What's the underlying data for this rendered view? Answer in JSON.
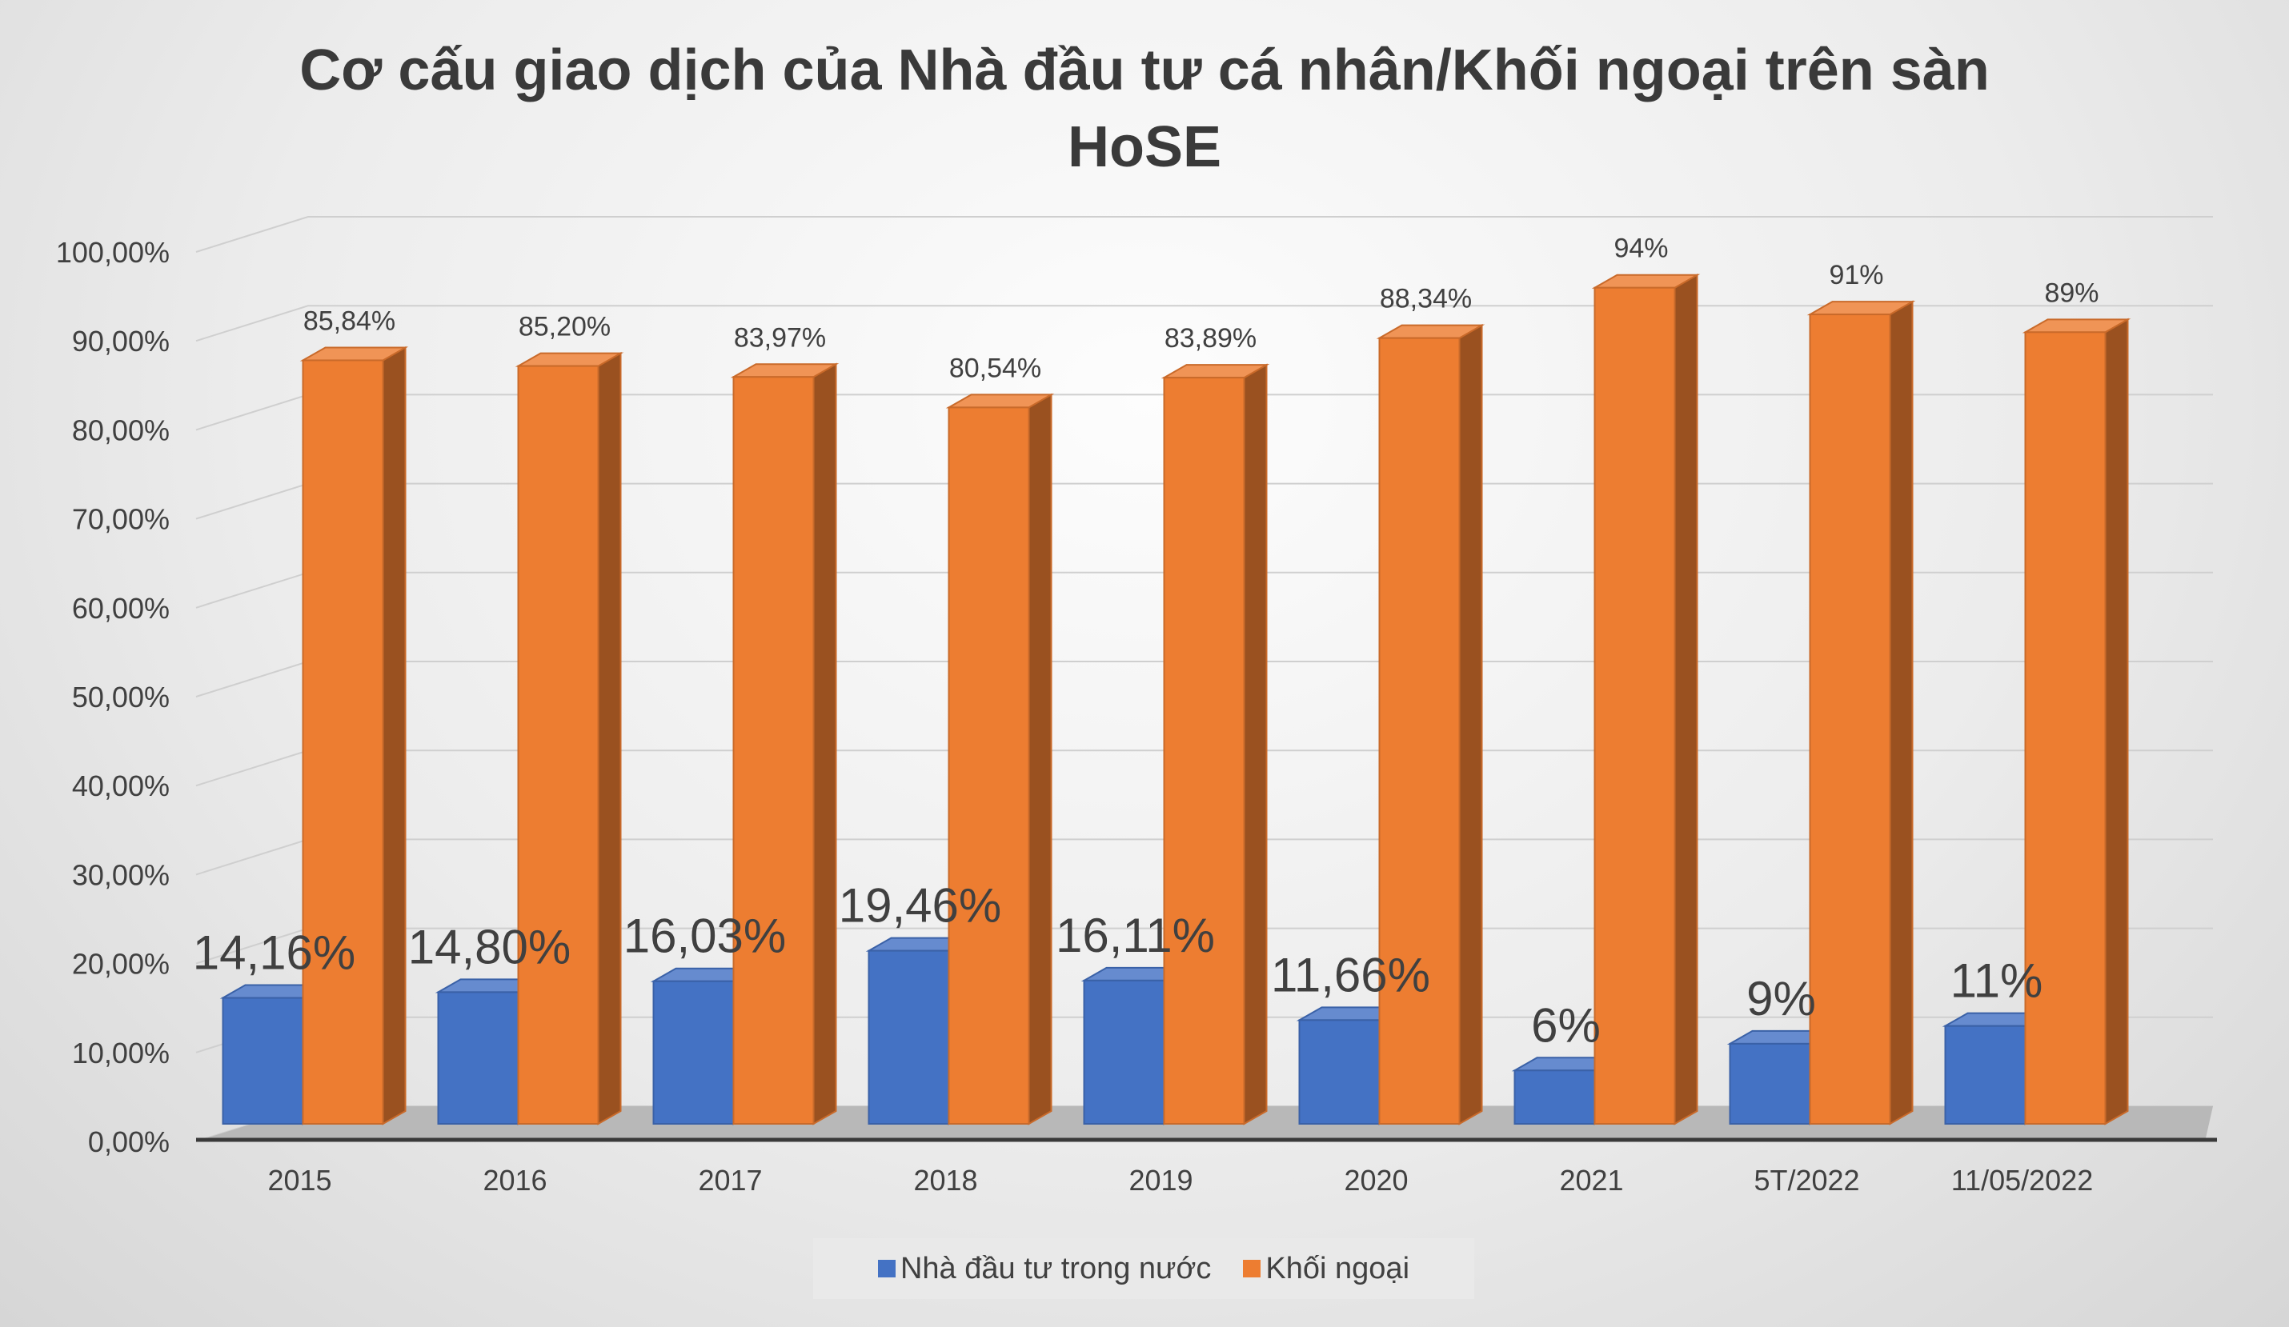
{
  "chart_data": {
    "type": "bar",
    "title_line1": "Cơ cấu giao dịch của Nhà đầu tư cá nhân/Khối ngoại trên sàn",
    "title_line2": "HoSE",
    "categories": [
      "2015",
      "2016",
      "2017",
      "2018",
      "2019",
      "2020",
      "2021",
      "5T/2022",
      "11/05/2022"
    ],
    "series": [
      {
        "name": "Nhà đầu tư trong nước",
        "color": "#4472C4",
        "values": [
          14.16,
          14.8,
          16.03,
          19.46,
          16.11,
          11.66,
          6,
          9,
          11
        ],
        "labels": [
          "14,16%",
          "14,80%",
          "16,03%",
          "19,46%",
          "16,11%",
          "11,66%",
          "6%",
          "9%",
          "11%"
        ]
      },
      {
        "name": "Khối ngoại",
        "color": "#ED7D31",
        "values": [
          85.84,
          85.2,
          83.97,
          80.54,
          83.89,
          88.34,
          94,
          91,
          89
        ],
        "labels": [
          "85,84%",
          "85,20%",
          "83,97%",
          "80,54%",
          "83,89%",
          "88,34%",
          "94%",
          "91%",
          "89%"
        ]
      }
    ],
    "y_ticks": [
      "0,00%",
      "10,00%",
      "20,00%",
      "30,00%",
      "40,00%",
      "50,00%",
      "60,00%",
      "70,00%",
      "80,00%",
      "90,00%",
      "100,00%"
    ],
    "ylim": [
      0,
      100
    ],
    "grid": true,
    "legend_position": "bottom"
  }
}
